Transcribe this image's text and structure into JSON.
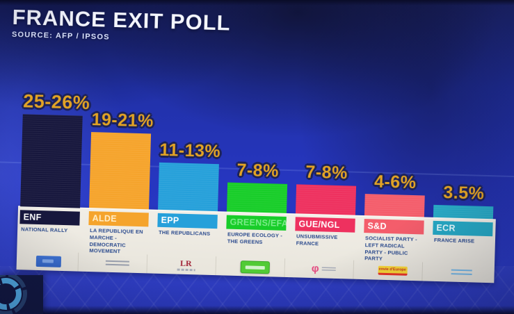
{
  "header": {
    "title": "FRANCE EXIT POLL",
    "source": "SOURCE: AFP / IPSOS"
  },
  "chart_data": {
    "type": "bar",
    "title": "FRANCE EXIT POLL",
    "source": "AFP / IPSOS",
    "unit": "percent of vote",
    "ylim": [
      0,
      30
    ],
    "grid": false,
    "legend_position": "below-bars",
    "categories": [
      "ENF",
      "ALDE",
      "EPP",
      "GREENS/EFA",
      "GUE/NGL",
      "S&D",
      "ECR"
    ],
    "series": [
      {
        "name": "exit-poll-upper-estimate",
        "values": [
          26,
          21,
          13,
          8,
          8,
          6,
          3.5
        ]
      }
    ],
    "bars": [
      {
        "group": "ENF",
        "party": "NATIONAL RALLY",
        "label": "25-26%",
        "range": [
          25,
          26
        ],
        "value_max": 26,
        "color": "#17173b",
        "chip_text_color": "#ffffff",
        "logo": "rn-logo"
      },
      {
        "group": "ALDE",
        "party": "LA REPUBLIQUE EN MARCHE - DEMOCRATIC MOVEMENT",
        "label": "19-21%",
        "range": [
          19,
          21
        ],
        "value_max": 21,
        "color": "#f2a432",
        "chip_text_color": "#ffeec9",
        "logo": "lrem-logo"
      },
      {
        "group": "EPP",
        "party": "THE REPUBLICANS",
        "label": "11-13%",
        "range": [
          11,
          13
        ],
        "value_max": 13,
        "color": "#2b9fd6",
        "chip_text_color": "#ffffff",
        "logo": "lr-logo",
        "logo_text": "LR"
      },
      {
        "group": "GREENS/EFA",
        "party": "EUROPE ECOLOGY - THE GREENS",
        "label": "7-8%",
        "range": [
          7,
          8
        ],
        "value_max": 8,
        "color": "#1ecb2e",
        "chip_text_color": "#7fe98c",
        "logo": "eelv-logo"
      },
      {
        "group": "GUE/NGL",
        "party": "UNSUBMISSIVE FRANCE",
        "label": "7-8%",
        "range": [
          7,
          8
        ],
        "value_max": 8,
        "color": "#e7335f",
        "chip_text_color": "#ffffff",
        "logo": "fi-logo",
        "logo_text": "φ"
      },
      {
        "group": "S&D",
        "party": "SOCIALIST PARTY - LEFT RADICAL PARTY - PUBLIC PARTY",
        "label": "4-6%",
        "range": [
          4,
          6
        ],
        "value_max": 6,
        "color": "#ee5f6c",
        "chip_text_color": "#ffffff",
        "logo": "envie-deurope-logo",
        "logo_text": "envie d'Europe"
      },
      {
        "group": "ECR",
        "party": "FRANCE ARISE",
        "label": "3.5%",
        "range": [
          3.5,
          3.5
        ],
        "value_max": 3.5,
        "color": "#2ba8c2",
        "chip_text_color": "#e8fbff",
        "logo": "dlf-logo"
      }
    ]
  },
  "colors": {
    "value_label": "#dfa32b",
    "value_outline": "#1d2256",
    "panel": "#ece9e1",
    "party_text": "#2c4a8a",
    "background_accent": "#2636c2"
  }
}
